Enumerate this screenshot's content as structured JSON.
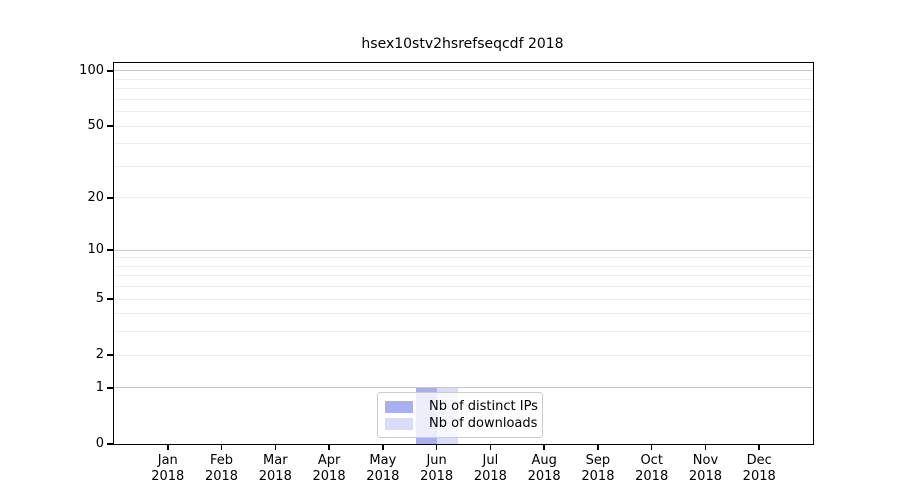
{
  "chart_data": {
    "type": "bar",
    "title": "hsex10stv2hsrefseqcdf 2018",
    "year_label": "2018",
    "categories": [
      "Jan",
      "Feb",
      "Mar",
      "Apr",
      "May",
      "Jun",
      "Jul",
      "Aug",
      "Sep",
      "Oct",
      "Nov",
      "Dec"
    ],
    "series": [
      {
        "name": "Nb of distinct IPs",
        "color": "#a9b0ef",
        "values": [
          0,
          0,
          0,
          0,
          0,
          1,
          0,
          0,
          0,
          0,
          0,
          0
        ]
      },
      {
        "name": "Nb of downloads",
        "color": "#d9dcfa",
        "values": [
          0,
          0,
          0,
          0,
          0,
          1,
          0,
          0,
          0,
          0,
          0,
          0
        ]
      }
    ],
    "y_axis": {
      "scale": "log10(1+y)",
      "ticks": [
        0,
        1,
        2,
        5,
        10,
        20,
        50,
        100
      ],
      "minor_ticks": [
        3,
        4,
        6,
        7,
        8,
        9,
        30,
        40,
        60,
        70,
        80,
        90
      ],
      "emphasized_gridlines": [
        1,
        10,
        100
      ],
      "ylim": [
        0,
        110.4
      ]
    },
    "legend": {
      "position": "bottom-center",
      "entries": [
        "Nb of distinct IPs",
        "Nb of downloads"
      ]
    },
    "colors": {
      "grid_emphasized": "#c8c8c8",
      "grid_light": "#ededed",
      "axis": "#000000",
      "background": "#ffffff"
    }
  }
}
